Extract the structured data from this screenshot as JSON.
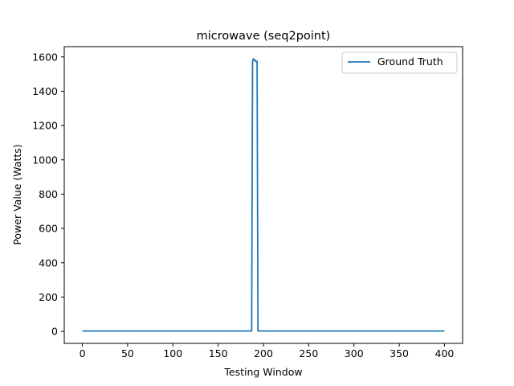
{
  "chart_data": {
    "type": "line",
    "title": "microwave (seq2point)",
    "xlabel": "Testing Window",
    "ylabel": "Power Value (Watts)",
    "xlim": [
      -20,
      420
    ],
    "ylim": [
      -70,
      1660
    ],
    "xticks": [
      0,
      50,
      100,
      150,
      200,
      250,
      300,
      350,
      400
    ],
    "yticks": [
      0,
      200,
      400,
      600,
      800,
      1000,
      1200,
      1400,
      1600
    ],
    "grid": false,
    "legend_position": "top-right",
    "series": [
      {
        "name": "Ground Truth",
        "color": "#1f77b4",
        "x": [
          0,
          187,
          188,
          189,
          190,
          191,
          192,
          193,
          194,
          400
        ],
        "y": [
          2,
          2,
          1575,
          1590,
          1578,
          1580,
          1572,
          1575,
          2,
          2
        ]
      }
    ]
  }
}
